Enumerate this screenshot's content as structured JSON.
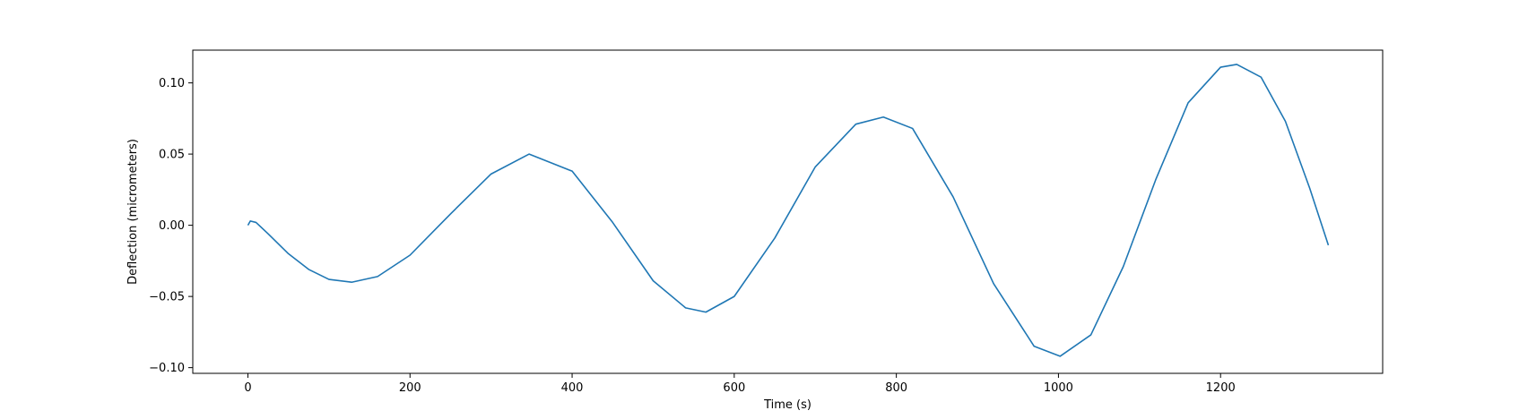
{
  "chart_data": {
    "type": "line",
    "title": "",
    "xlabel": "Time (s)",
    "ylabel": "Deflection (micrometers)",
    "xlim": [
      -68,
      1400
    ],
    "ylim": [
      -0.104,
      0.123
    ],
    "xticks": [
      0,
      200,
      400,
      600,
      800,
      1000,
      1200
    ],
    "yticks": [
      -0.1,
      -0.05,
      0.0,
      0.05,
      0.1
    ],
    "xtick_labels": [
      "0",
      "200",
      "400",
      "600",
      "800",
      "1000",
      "1200"
    ],
    "ytick_labels": [
      "−0.10",
      "−0.05",
      "0.00",
      "0.05",
      "0.10"
    ],
    "grid": false,
    "series": [
      {
        "color": "#1f77b4",
        "x": [
          0,
          3,
          10,
          25,
          50,
          75,
          100,
          128,
          160,
          200,
          250,
          300,
          347,
          400,
          450,
          500,
          540,
          565,
          600,
          650,
          700,
          750,
          784,
          820,
          870,
          920,
          970,
          1002,
          1040,
          1080,
          1120,
          1160,
          1200,
          1220,
          1250,
          1280,
          1310,
          1333
        ],
        "y": [
          0.0,
          0.003,
          0.002,
          -0.006,
          -0.02,
          -0.031,
          -0.038,
          -0.04,
          -0.036,
          -0.021,
          0.008,
          0.036,
          0.05,
          0.038,
          0.002,
          -0.039,
          -0.058,
          -0.061,
          -0.05,
          -0.009,
          0.041,
          0.071,
          0.076,
          0.068,
          0.02,
          -0.041,
          -0.085,
          -0.092,
          -0.077,
          -0.029,
          0.032,
          0.086,
          0.111,
          0.113,
          0.104,
          0.073,
          0.026,
          -0.014
        ]
      }
    ]
  }
}
